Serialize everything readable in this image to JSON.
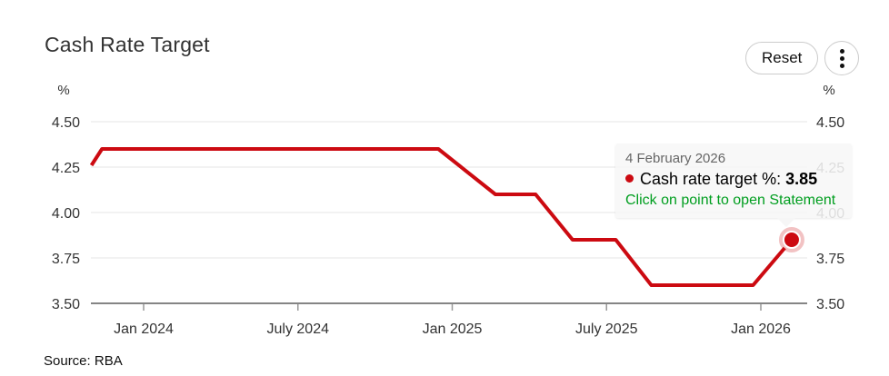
{
  "header": {
    "title": "Cash Rate Target",
    "reset_label": "Reset"
  },
  "tooltip": {
    "date": "4 February 2026",
    "series_label": "Cash rate target %:",
    "value": "3.85",
    "hint": "Click on point to open Statement"
  },
  "footer": {
    "source": "Source: RBA"
  },
  "colors": {
    "line": "#cc0a11",
    "halo": "rgba(204,10,17,0.25)",
    "hint_green": "#009e1f",
    "date_gray": "#666666",
    "axis_text": "#333333",
    "grid": "#e6e6e6",
    "axis_line": "#858585",
    "tick": "#999999"
  },
  "chart_data": {
    "type": "line",
    "title": "Cash Rate Target",
    "xlabel": "",
    "ylabel": "%",
    "ylim": [
      3.5,
      4.5
    ],
    "grid": true,
    "legend": "none",
    "y_ticks": [
      4.5,
      4.25,
      4.0,
      3.75,
      3.5
    ],
    "y_tick_labels": [
      "4.50",
      "4.25",
      "4.00",
      "3.75",
      "3.50"
    ],
    "x_ticks": [
      {
        "label": "Jan 2024",
        "t": 2024.0
      },
      {
        "label": "July 2024",
        "t": 2024.5
      },
      {
        "label": "Jan 2025",
        "t": 2025.0
      },
      {
        "label": "July 2025",
        "t": 2025.5
      },
      {
        "label": "Jan 2026",
        "t": 2026.0
      }
    ],
    "x_range": [
      2023.83,
      2026.15
    ],
    "series": [
      {
        "name": "Cash rate target %",
        "color": "#cc0a11",
        "points": [
          [
            2023.831,
            4.26
          ],
          [
            2023.865,
            4.35
          ],
          [
            2024.955,
            4.35
          ],
          [
            2025.14,
            4.1
          ],
          [
            2025.27,
            4.1
          ],
          [
            2025.39,
            3.85
          ],
          [
            2025.53,
            3.85
          ],
          [
            2025.645,
            3.6
          ],
          [
            2025.975,
            3.6
          ],
          [
            2026.1,
            3.85
          ]
        ]
      }
    ],
    "last_point": {
      "date": "4 February 2026",
      "value": 3.85
    }
  }
}
